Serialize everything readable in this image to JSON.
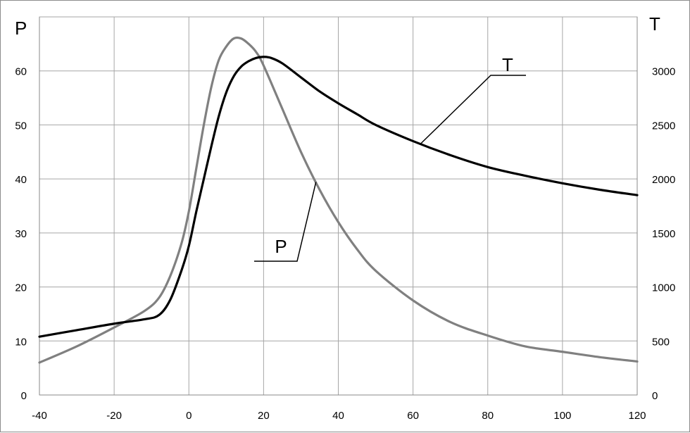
{
  "chart_data": {
    "type": "line",
    "x_axis": {
      "range": [
        -40,
        120
      ],
      "ticks": [
        -40,
        -20,
        0,
        20,
        40,
        60,
        80,
        100,
        120
      ],
      "label": ""
    },
    "y_axis_left": {
      "label": "P",
      "range": [
        0,
        70
      ],
      "ticks": [
        0,
        10,
        20,
        30,
        40,
        50,
        60
      ]
    },
    "y_axis_right": {
      "label": "T",
      "range": [
        0,
        3500
      ],
      "ticks": [
        0,
        500,
        1000,
        1500,
        2000,
        2500,
        3000
      ]
    },
    "grid": true,
    "series": [
      {
        "name": "P",
        "axis": "left",
        "color": "#808080",
        "x": [
          -40,
          -30,
          -20,
          -12,
          -8,
          -5,
          -2,
          0,
          2,
          4,
          6,
          8,
          10,
          12,
          14,
          16,
          18,
          20,
          25,
          30,
          35,
          40,
          45,
          50,
          60,
          70,
          80,
          90,
          100,
          110,
          120
        ],
        "y": [
          6,
          9,
          12.5,
          15.5,
          18,
          22,
          28,
          34,
          42,
          50,
          57,
          62,
          64.5,
          66,
          66,
          65,
          63.5,
          61,
          53,
          45,
          38,
          32,
          27,
          23,
          17.5,
          13.5,
          11,
          9,
          8,
          7,
          6.2
        ]
      },
      {
        "name": "T",
        "axis": "right",
        "color": "#000000",
        "x": [
          -40,
          -30,
          -20,
          -12,
          -8,
          -5,
          -2,
          0,
          2,
          4,
          6,
          8,
          10,
          12,
          14,
          16,
          18,
          20,
          22,
          25,
          30,
          35,
          40,
          45,
          50,
          60,
          70,
          80,
          90,
          100,
          110,
          120
        ],
        "y": [
          540,
          600,
          660,
          700,
          740,
          880,
          1150,
          1380,
          1700,
          2000,
          2300,
          2580,
          2800,
          2950,
          3040,
          3090,
          3120,
          3130,
          3120,
          3070,
          2940,
          2810,
          2700,
          2600,
          2500,
          2350,
          2220,
          2110,
          2030,
          1960,
          1900,
          1850
        ]
      }
    ],
    "annotations": [
      {
        "text": "P",
        "points_to_series": "P",
        "at_x": 34
      },
      {
        "text": "T",
        "points_to_series": "T",
        "at_x": 62
      }
    ]
  }
}
